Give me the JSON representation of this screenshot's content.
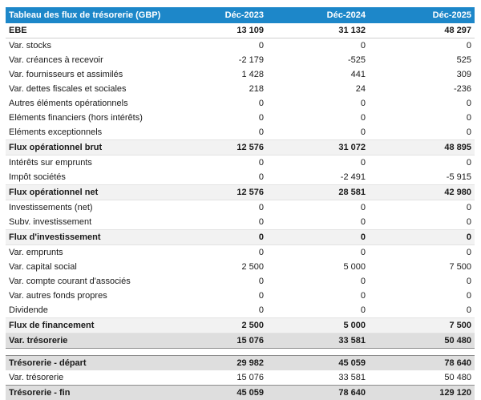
{
  "colors": {
    "header_bg": "#1d87c9",
    "header_text": "#ffffff",
    "subtotal_bg": "#f2f2f2",
    "highlight_bg": "#dedede",
    "dark_border": "#8c8c8c",
    "text": "#1a1a1a"
  },
  "table": {
    "header": {
      "label": "Tableau des flux de trésorerie (GBP)",
      "columns": [
        "Déc-2023",
        "Déc-2024",
        "Déc-2025"
      ]
    },
    "rows": [
      {
        "label": "EBE",
        "values": [
          "13 109",
          "31 132",
          "48 297"
        ],
        "style": "lead"
      },
      {
        "label": "Var. stocks",
        "values": [
          "0",
          "0",
          "0"
        ],
        "style": "normal"
      },
      {
        "label": "Var. créances à recevoir",
        "values": [
          "-2 179",
          "-525",
          "525"
        ],
        "style": "normal"
      },
      {
        "label": "Var. fournisseurs et assimilés",
        "values": [
          "1 428",
          "441",
          "309"
        ],
        "style": "normal"
      },
      {
        "label": "Var. dettes fiscales et sociales",
        "values": [
          "218",
          "24",
          "-236"
        ],
        "style": "normal"
      },
      {
        "label": "Autres éléments opérationnels",
        "values": [
          "0",
          "0",
          "0"
        ],
        "style": "normal"
      },
      {
        "label": "Eléments financiers (hors intérêts)",
        "values": [
          "0",
          "0",
          "0"
        ],
        "style": "normal"
      },
      {
        "label": "Eléments exceptionnels",
        "values": [
          "0",
          "0",
          "0"
        ],
        "style": "normal"
      },
      {
        "label": "Flux opérationnel brut",
        "values": [
          "12 576",
          "31 072",
          "48 895"
        ],
        "style": "subtotal"
      },
      {
        "label": "Intérêts sur emprunts",
        "values": [
          "0",
          "0",
          "0"
        ],
        "style": "normal"
      },
      {
        "label": "Impôt sociétés",
        "values": [
          "0",
          "-2 491",
          "-5 915"
        ],
        "style": "normal"
      },
      {
        "label": "Flux opérationnel net",
        "values": [
          "12 576",
          "28 581",
          "42 980"
        ],
        "style": "subtotal"
      },
      {
        "label": "Investissements (net)",
        "values": [
          "0",
          "0",
          "0"
        ],
        "style": "normal"
      },
      {
        "label": "Subv. investissement",
        "values": [
          "0",
          "0",
          "0"
        ],
        "style": "normal"
      },
      {
        "label": "Flux d'investissement",
        "values": [
          "0",
          "0",
          "0"
        ],
        "style": "subtotal"
      },
      {
        "label": "Var. emprunts",
        "values": [
          "0",
          "0",
          "0"
        ],
        "style": "normal"
      },
      {
        "label": "Var. capital social",
        "values": [
          "2 500",
          "5 000",
          "7 500"
        ],
        "style": "normal"
      },
      {
        "label": "Var. compte courant d'associés",
        "values": [
          "0",
          "0",
          "0"
        ],
        "style": "normal"
      },
      {
        "label": "Var. autres fonds propres",
        "values": [
          "0",
          "0",
          "0"
        ],
        "style": "normal"
      },
      {
        "label": "Dividende",
        "values": [
          "0",
          "0",
          "0"
        ],
        "style": "normal"
      },
      {
        "label": "Flux de financement",
        "values": [
          "2 500",
          "5 000",
          "7 500"
        ],
        "style": "subtotal"
      },
      {
        "label": "Var. trésorerie",
        "values": [
          "15 076",
          "33 581",
          "50 480"
        ],
        "style": "emphasis"
      },
      {
        "label": "",
        "values": [],
        "style": "spacer"
      },
      {
        "label": "Trésorerie - départ",
        "values": [
          "29 982",
          "45 059",
          "78 640"
        ],
        "style": "carry"
      },
      {
        "label": "Var. trésorerie",
        "values": [
          "15 076",
          "33 581",
          "50 480"
        ],
        "style": "normal"
      },
      {
        "label": "Trésorerie - fin",
        "values": [
          "45 059",
          "78 640",
          "129 120"
        ],
        "style": "carryend"
      }
    ]
  }
}
